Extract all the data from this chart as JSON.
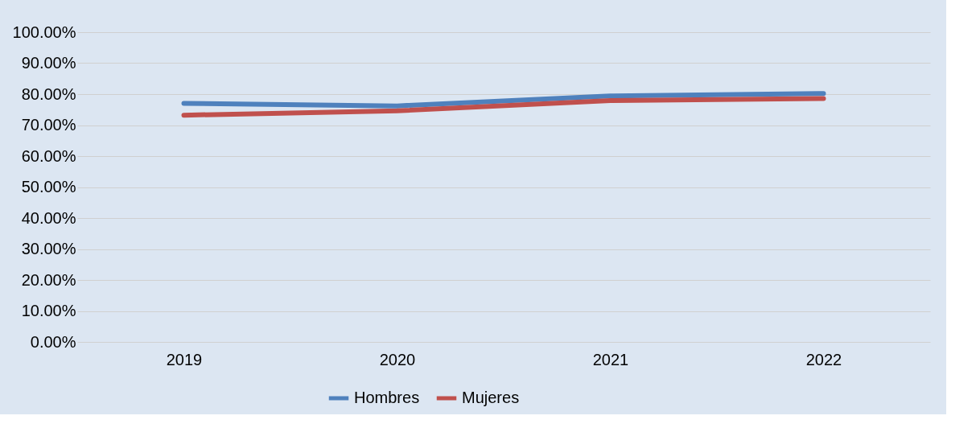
{
  "chart_data": {
    "type": "line",
    "categories": [
      "2019",
      "2020",
      "2021",
      "2022"
    ],
    "series": [
      {
        "name": "Hombres",
        "color": "#4f81bd",
        "values": [
          77.0,
          76.2,
          79.4,
          80.2
        ]
      },
      {
        "name": "Mujeres",
        "color": "#c0504d",
        "values": [
          73.2,
          74.6,
          77.9,
          78.6
        ]
      }
    ],
    "ylim": [
      0,
      100
    ],
    "yticks": [
      {
        "value": 0,
        "label": "0.00%"
      },
      {
        "value": 10,
        "label": "10.00%"
      },
      {
        "value": 20,
        "label": "20.00%"
      },
      {
        "value": 30,
        "label": "30.00%"
      },
      {
        "value": 40,
        "label": "40.00%"
      },
      {
        "value": 50,
        "label": "50.00%"
      },
      {
        "value": 60,
        "label": "60.00%"
      },
      {
        "value": 70,
        "label": "70.00%"
      },
      {
        "value": 80,
        "label": "80.00%"
      },
      {
        "value": 90,
        "label": "90.00%"
      },
      {
        "value": 100,
        "label": "100.00%"
      }
    ],
    "grid": "y",
    "legend": "bottom",
    "marker": "none",
    "line_style": "solid"
  }
}
